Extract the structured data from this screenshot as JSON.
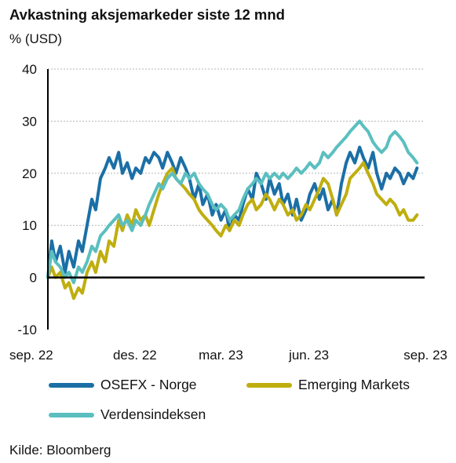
{
  "chart_data": {
    "type": "line",
    "title": "Avkastning aksjemarkeder siste 12 mnd",
    "unit": "% (USD)",
    "source": "Kilde: Bloomberg",
    "ylim": [
      -10,
      40
    ],
    "yticks": [
      -10,
      0,
      10,
      20,
      30,
      40
    ],
    "xlim": [
      "2022-09-01",
      "2023-09-30"
    ],
    "xticks": [
      {
        "date": "2022-09-01",
        "label": "sep. 22"
      },
      {
        "date": "2022-12-01",
        "label": "des. 22"
      },
      {
        "date": "2023-03-01",
        "label": "mar. 23"
      },
      {
        "date": "2023-06-01",
        "label": "jun. 23"
      },
      {
        "date": "2023-09-01",
        "label": "sep. 23"
      }
    ],
    "grid": "horizontal dotted",
    "legend_position": "bottom",
    "series": [
      {
        "name": "OSEFX - Norge",
        "color": "#1b6fa6",
        "points": [
          [
            "2022-09-01",
            0
          ],
          [
            "2022-09-05",
            7
          ],
          [
            "2022-09-09",
            3
          ],
          [
            "2022-09-14",
            6
          ],
          [
            "2022-09-19",
            1
          ],
          [
            "2022-09-23",
            5
          ],
          [
            "2022-09-28",
            2
          ],
          [
            "2022-10-03",
            7
          ],
          [
            "2022-10-07",
            5
          ],
          [
            "2022-10-12",
            10
          ],
          [
            "2022-10-17",
            15
          ],
          [
            "2022-10-21",
            13
          ],
          [
            "2022-10-26",
            19
          ],
          [
            "2022-10-31",
            21
          ],
          [
            "2022-11-04",
            23
          ],
          [
            "2022-11-09",
            21
          ],
          [
            "2022-11-14",
            24
          ],
          [
            "2022-11-18",
            20
          ],
          [
            "2022-11-23",
            22
          ],
          [
            "2022-11-28",
            19
          ],
          [
            "2022-12-02",
            21
          ],
          [
            "2022-12-07",
            20
          ],
          [
            "2022-12-12",
            23
          ],
          [
            "2022-12-16",
            22
          ],
          [
            "2022-12-21",
            24
          ],
          [
            "2022-12-26",
            23
          ],
          [
            "2022-12-30",
            21
          ],
          [
            "2023-01-04",
            24
          ],
          [
            "2023-01-09",
            22
          ],
          [
            "2023-01-13",
            20
          ],
          [
            "2023-01-18",
            23
          ],
          [
            "2023-01-23",
            21
          ],
          [
            "2023-01-27",
            19
          ],
          [
            "2023-02-01",
            15
          ],
          [
            "2023-02-06",
            18
          ],
          [
            "2023-02-10",
            14
          ],
          [
            "2023-02-15",
            16
          ],
          [
            "2023-02-20",
            12
          ],
          [
            "2023-02-24",
            14
          ],
          [
            "2023-03-01",
            11
          ],
          [
            "2023-03-06",
            13
          ],
          [
            "2023-03-10",
            9
          ],
          [
            "2023-03-15",
            12
          ],
          [
            "2023-03-20",
            11
          ],
          [
            "2023-03-24",
            14
          ],
          [
            "2023-03-29",
            17
          ],
          [
            "2023-04-03",
            15
          ],
          [
            "2023-04-07",
            20
          ],
          [
            "2023-04-12",
            18
          ],
          [
            "2023-04-17",
            15
          ],
          [
            "2023-04-21",
            19
          ],
          [
            "2023-04-26",
            16
          ],
          [
            "2023-05-01",
            18
          ],
          [
            "2023-05-05",
            14
          ],
          [
            "2023-05-10",
            16
          ],
          [
            "2023-05-15",
            12
          ],
          [
            "2023-05-19",
            15
          ],
          [
            "2023-05-24",
            11
          ],
          [
            "2023-05-29",
            13
          ],
          [
            "2023-06-02",
            16
          ],
          [
            "2023-06-07",
            18
          ],
          [
            "2023-06-12",
            15
          ],
          [
            "2023-06-16",
            17
          ],
          [
            "2023-06-21",
            13
          ],
          [
            "2023-06-26",
            15
          ],
          [
            "2023-06-30",
            12
          ],
          [
            "2023-07-05",
            18
          ],
          [
            "2023-07-10",
            22
          ],
          [
            "2023-07-14",
            24
          ],
          [
            "2023-07-19",
            22
          ],
          [
            "2023-07-24",
            25
          ],
          [
            "2023-07-28",
            23
          ],
          [
            "2023-08-02",
            21
          ],
          [
            "2023-08-07",
            24
          ],
          [
            "2023-08-11",
            20
          ],
          [
            "2023-08-16",
            17
          ],
          [
            "2023-08-21",
            20
          ],
          [
            "2023-08-25",
            19
          ],
          [
            "2023-08-30",
            21
          ],
          [
            "2023-09-04",
            20
          ],
          [
            "2023-09-08",
            18
          ],
          [
            "2023-09-13",
            20
          ],
          [
            "2023-09-18",
            19
          ],
          [
            "2023-09-22",
            21
          ]
        ]
      },
      {
        "name": "Emerging Markets",
        "color": "#bfae0f",
        "points": [
          [
            "2022-09-01",
            0
          ],
          [
            "2022-09-05",
            2
          ],
          [
            "2022-09-09",
            0
          ],
          [
            "2022-09-14",
            1
          ],
          [
            "2022-09-19",
            -2
          ],
          [
            "2022-09-23",
            -1
          ],
          [
            "2022-09-28",
            -4
          ],
          [
            "2022-10-03",
            -2
          ],
          [
            "2022-10-07",
            -3
          ],
          [
            "2022-10-12",
            1
          ],
          [
            "2022-10-17",
            3
          ],
          [
            "2022-10-21",
            1
          ],
          [
            "2022-10-26",
            5
          ],
          [
            "2022-10-31",
            3
          ],
          [
            "2022-11-04",
            7
          ],
          [
            "2022-11-09",
            6
          ],
          [
            "2022-11-14",
            11
          ],
          [
            "2022-11-18",
            9
          ],
          [
            "2022-11-23",
            12
          ],
          [
            "2022-11-28",
            10
          ],
          [
            "2022-12-02",
            13
          ],
          [
            "2022-12-07",
            11
          ],
          [
            "2022-12-12",
            12
          ],
          [
            "2022-12-16",
            10
          ],
          [
            "2022-12-21",
            13
          ],
          [
            "2022-12-26",
            16
          ],
          [
            "2022-12-30",
            18
          ],
          [
            "2023-01-04",
            20
          ],
          [
            "2023-01-09",
            21
          ],
          [
            "2023-01-13",
            19
          ],
          [
            "2023-01-18",
            18
          ],
          [
            "2023-01-23",
            17
          ],
          [
            "2023-01-27",
            16
          ],
          [
            "2023-02-01",
            15
          ],
          [
            "2023-02-06",
            13
          ],
          [
            "2023-02-10",
            12
          ],
          [
            "2023-02-15",
            11
          ],
          [
            "2023-02-20",
            10
          ],
          [
            "2023-02-24",
            9
          ],
          [
            "2023-03-01",
            8
          ],
          [
            "2023-03-06",
            10
          ],
          [
            "2023-03-10",
            9
          ],
          [
            "2023-03-15",
            11
          ],
          [
            "2023-03-20",
            10
          ],
          [
            "2023-03-24",
            12
          ],
          [
            "2023-03-29",
            14
          ],
          [
            "2023-04-03",
            15
          ],
          [
            "2023-04-07",
            13
          ],
          [
            "2023-04-12",
            14
          ],
          [
            "2023-04-17",
            16
          ],
          [
            "2023-04-21",
            15
          ],
          [
            "2023-04-26",
            13
          ],
          [
            "2023-05-01",
            15
          ],
          [
            "2023-05-05",
            14
          ],
          [
            "2023-05-10",
            12
          ],
          [
            "2023-05-15",
            13
          ],
          [
            "2023-05-19",
            11
          ],
          [
            "2023-05-24",
            12
          ],
          [
            "2023-05-29",
            14
          ],
          [
            "2023-06-02",
            13
          ],
          [
            "2023-06-07",
            15
          ],
          [
            "2023-06-12",
            17
          ],
          [
            "2023-06-16",
            19
          ],
          [
            "2023-06-21",
            18
          ],
          [
            "2023-06-26",
            15
          ],
          [
            "2023-06-30",
            12
          ],
          [
            "2023-07-05",
            14
          ],
          [
            "2023-07-10",
            16
          ],
          [
            "2023-07-14",
            19
          ],
          [
            "2023-07-19",
            20
          ],
          [
            "2023-07-24",
            21
          ],
          [
            "2023-07-28",
            22
          ],
          [
            "2023-08-02",
            20
          ],
          [
            "2023-08-07",
            18
          ],
          [
            "2023-08-11",
            16
          ],
          [
            "2023-08-16",
            15
          ],
          [
            "2023-08-21",
            14
          ],
          [
            "2023-08-25",
            15
          ],
          [
            "2023-08-30",
            14
          ],
          [
            "2023-09-04",
            12
          ],
          [
            "2023-09-08",
            13
          ],
          [
            "2023-09-13",
            11
          ],
          [
            "2023-09-18",
            11
          ],
          [
            "2023-09-22",
            12
          ]
        ]
      },
      {
        "name": "Verdensindeksen",
        "color": "#5bbfbf",
        "points": [
          [
            "2022-09-01",
            0
          ],
          [
            "2022-09-05",
            5
          ],
          [
            "2022-09-09",
            3
          ],
          [
            "2022-09-14",
            2
          ],
          [
            "2022-09-19",
            0
          ],
          [
            "2022-09-23",
            1
          ],
          [
            "2022-09-28",
            -1
          ],
          [
            "2022-10-03",
            2
          ],
          [
            "2022-10-07",
            1
          ],
          [
            "2022-10-12",
            3
          ],
          [
            "2022-10-17",
            6
          ],
          [
            "2022-10-21",
            5
          ],
          [
            "2022-10-26",
            8
          ],
          [
            "2022-10-31",
            9
          ],
          [
            "2022-11-04",
            10
          ],
          [
            "2022-11-09",
            11
          ],
          [
            "2022-11-14",
            12
          ],
          [
            "2022-11-18",
            10
          ],
          [
            "2022-11-23",
            11
          ],
          [
            "2022-11-28",
            9
          ],
          [
            "2022-12-02",
            11
          ],
          [
            "2022-12-07",
            10
          ],
          [
            "2022-12-12",
            12
          ],
          [
            "2022-12-16",
            14
          ],
          [
            "2022-12-21",
            16
          ],
          [
            "2022-12-26",
            18
          ],
          [
            "2022-12-30",
            17
          ],
          [
            "2023-01-04",
            19
          ],
          [
            "2023-01-09",
            20
          ],
          [
            "2023-01-13",
            19
          ],
          [
            "2023-01-18",
            18
          ],
          [
            "2023-01-23",
            20
          ],
          [
            "2023-01-27",
            19
          ],
          [
            "2023-02-01",
            20
          ],
          [
            "2023-02-06",
            18
          ],
          [
            "2023-02-10",
            17
          ],
          [
            "2023-02-15",
            16
          ],
          [
            "2023-02-20",
            14
          ],
          [
            "2023-02-24",
            13
          ],
          [
            "2023-03-01",
            14
          ],
          [
            "2023-03-06",
            13
          ],
          [
            "2023-03-10",
            11
          ],
          [
            "2023-03-15",
            12
          ],
          [
            "2023-03-20",
            13
          ],
          [
            "2023-03-24",
            15
          ],
          [
            "2023-03-29",
            17
          ],
          [
            "2023-04-03",
            18
          ],
          [
            "2023-04-07",
            19
          ],
          [
            "2023-04-12",
            18
          ],
          [
            "2023-04-17",
            20
          ],
          [
            "2023-04-21",
            19
          ],
          [
            "2023-04-26",
            20
          ],
          [
            "2023-05-01",
            19
          ],
          [
            "2023-05-05",
            20
          ],
          [
            "2023-05-10",
            19
          ],
          [
            "2023-05-15",
            20
          ],
          [
            "2023-05-19",
            21
          ],
          [
            "2023-05-24",
            20
          ],
          [
            "2023-05-29",
            21
          ],
          [
            "2023-06-02",
            22
          ],
          [
            "2023-06-07",
            21
          ],
          [
            "2023-06-12",
            22
          ],
          [
            "2023-06-16",
            24
          ],
          [
            "2023-06-21",
            23
          ],
          [
            "2023-06-26",
            24
          ],
          [
            "2023-06-30",
            25
          ],
          [
            "2023-07-05",
            26
          ],
          [
            "2023-07-10",
            27
          ],
          [
            "2023-07-14",
            28
          ],
          [
            "2023-07-19",
            29
          ],
          [
            "2023-07-24",
            30
          ],
          [
            "2023-07-28",
            29
          ],
          [
            "2023-08-02",
            28
          ],
          [
            "2023-08-07",
            26
          ],
          [
            "2023-08-11",
            25
          ],
          [
            "2023-08-16",
            24
          ],
          [
            "2023-08-21",
            25
          ],
          [
            "2023-08-25",
            27
          ],
          [
            "2023-08-30",
            28
          ],
          [
            "2023-09-04",
            27
          ],
          [
            "2023-09-08",
            26
          ],
          [
            "2023-09-13",
            24
          ],
          [
            "2023-09-18",
            23
          ],
          [
            "2023-09-22",
            22
          ]
        ]
      }
    ]
  }
}
